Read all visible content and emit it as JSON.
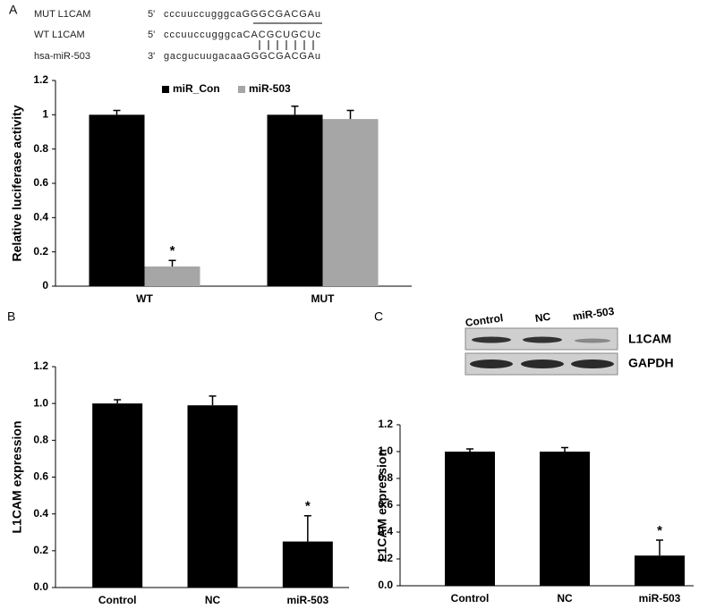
{
  "panels": [
    "A",
    "B",
    "C"
  ],
  "sequences": [
    {
      "name": "MUT L1CAM",
      "end": "5'",
      "seq": "cccuuccugggcaGGGCGACGAu"
    },
    {
      "name": "WT L1CAM",
      "end": "5'",
      "seq": "cccuuccugggcaCACGCUGCUc"
    },
    {
      "name": "hsa-miR-503",
      "end": "3'",
      "seq": "gacgucuugacaaGGGCGACGAu"
    }
  ],
  "blot": {
    "lanes": [
      "Control",
      "NC",
      "miR-503"
    ],
    "proteins": [
      "L1CAM",
      "GAPDH"
    ]
  },
  "chart_data": [
    {
      "type": "bar",
      "y_label": "Relative luciferase activity",
      "categories": [
        "WT",
        "MUT"
      ],
      "series": [
        {
          "name": "miR_Con",
          "color": "#000000",
          "values": [
            1.0,
            1.0
          ],
          "errors": [
            0.025,
            0.05
          ]
        },
        {
          "name": "miR-503",
          "color": "#a6a6a6",
          "values": [
            0.115,
            0.975
          ],
          "errors": [
            0.035,
            0.05
          ],
          "significance": [
            "*",
            null
          ]
        }
      ],
      "legend": "top",
      "ylim": [
        0,
        1.2
      ],
      "yticks": [
        0,
        0.2,
        0.4,
        0.6,
        0.8,
        1,
        1.2
      ]
    },
    {
      "type": "bar",
      "y_label": "L1CAM expression",
      "categories": [
        "Control",
        "NC",
        "miR-503"
      ],
      "values": [
        1.0,
        0.99,
        0.25
      ],
      "errors": [
        0.02,
        0.05,
        0.14
      ],
      "significance": [
        null,
        null,
        "*"
      ],
      "color": "#000000",
      "ylim": [
        0,
        1.2
      ],
      "yticks": [
        {
          "value": 0,
          "label": "0.0"
        },
        0.2,
        0.4,
        0.6,
        0.8,
        {
          "value": 1,
          "label": "1.0"
        },
        1.2
      ]
    },
    {
      "type": "bar",
      "y_label": "L1CAM expression",
      "categories": [
        "Control",
        "NC",
        "miR-503"
      ],
      "values": [
        1.0,
        1.0,
        0.225
      ],
      "errors": [
        0.02,
        0.03,
        0.115
      ],
      "significance": [
        null,
        null,
        "*"
      ],
      "color": "#000000",
      "ylim": [
        0,
        1.2
      ],
      "yticks": [
        {
          "value": 0,
          "label": "0.0"
        },
        0.2,
        0.4,
        0.6,
        0.8,
        {
          "value": 1,
          "label": "1.0"
        },
        1.2
      ]
    }
  ]
}
